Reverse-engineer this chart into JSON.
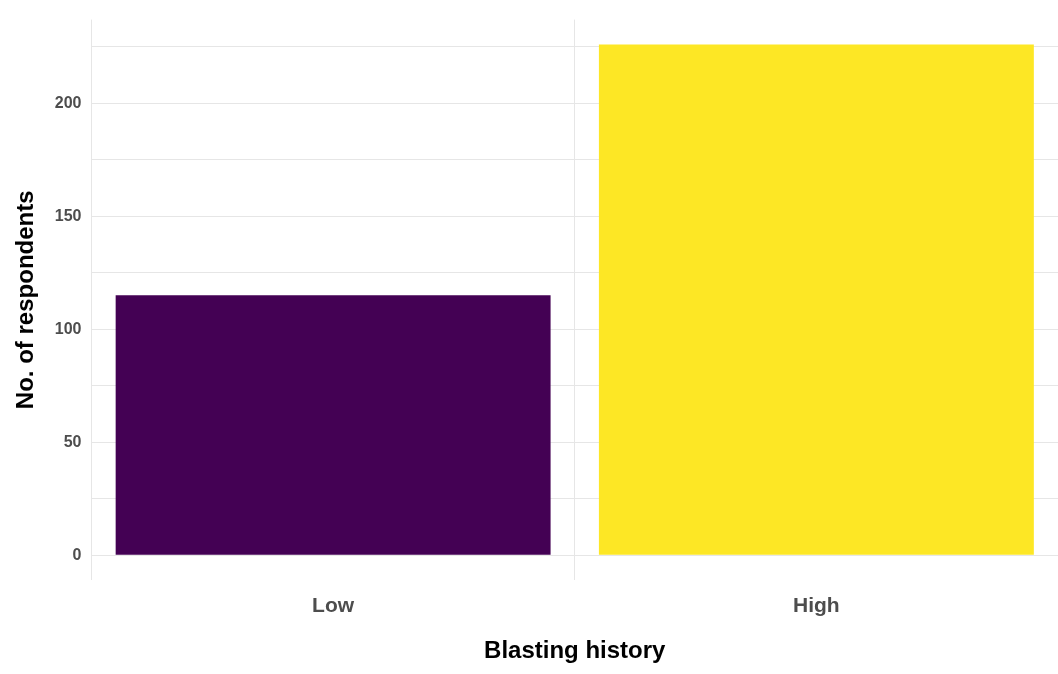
{
  "chart_data": {
    "type": "bar",
    "xlabel": "Blasting history",
    "ylabel": "No. of respondents",
    "categories": [
      "Low",
      "High"
    ],
    "colors": [
      "#440154",
      "#fde725"
    ],
    "values": [
      115,
      226
    ],
    "ylim": [
      -11,
      237
    ],
    "yticks": [
      0,
      {
        "value": 25,
        "label": null
      },
      50,
      {
        "value": 75,
        "label": null
      },
      100,
      {
        "value": 125,
        "label": null
      },
      150,
      {
        "value": 175,
        "label": null
      },
      200,
      {
        "value": 225,
        "label": null
      }
    ],
    "grid": true,
    "legend": false
  }
}
